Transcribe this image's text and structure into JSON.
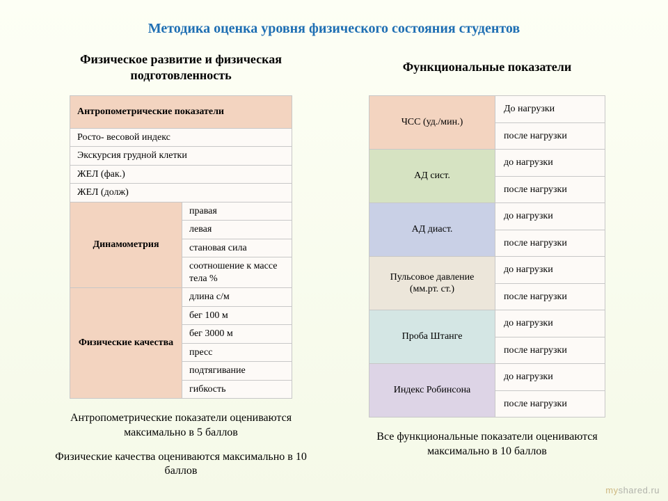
{
  "title": "Методика оценка уровня физического состояния студентов",
  "left": {
    "heading": "Физическое развитие и физическая подготовленность",
    "header": "Антропометрические показатели",
    "rows_plain": [
      "Росто- весовой индекс",
      "Экскурсия грудной клетки",
      "ЖЕЛ (фак.)",
      "ЖЕЛ (долж)"
    ],
    "group1_label": "Динамометрия",
    "group1_rows": [
      "правая",
      "левая",
      "становая сила",
      "соотношение к массе тела %"
    ],
    "group2_label": "Физические качества",
    "group2_rows": [
      "длина с/м",
      "бег 100 м",
      "бег 3000 м",
      "пресс",
      "подтягивание",
      "гибкость"
    ],
    "note1": "Антропометрические показатели оцениваются максимально в 5 баллов",
    "note2": "Физические качества оцениваются максимально в 10 баллов"
  },
  "right": {
    "heading": "Функциональные показатели",
    "rows": [
      {
        "label": "ЧСС (уд./мин.)",
        "before": "До нагрузки",
        "after": "после нагрузки"
      },
      {
        "label": "АД сист.",
        "before": "до нагрузки",
        "after": "после нагрузки"
      },
      {
        "label": "АД диаст.",
        "before": "до нагрузки",
        "after": "после нагрузки"
      },
      {
        "label": "Пульсовое давление (мм.рт. ст.)",
        "before": "до нагрузки",
        "after": "после нагрузки"
      },
      {
        "label": "Проба Штанге",
        "before": "до нагрузки",
        "after": "после нагрузки"
      },
      {
        "label": "Индекс Робинсона",
        "before": "до нагрузки",
        "after": "после нагрузки"
      }
    ],
    "note": "Все функциональные показатели оцениваются максимально в 10 баллов",
    "label_colors": [
      "#f3d4c0",
      "#d6e3c2",
      "#c9d0e6",
      "#ece6da",
      "#d4e6e4",
      "#ddd4e6"
    ]
  },
  "watermark": {
    "left": "my",
    "right": "shared.ru"
  }
}
